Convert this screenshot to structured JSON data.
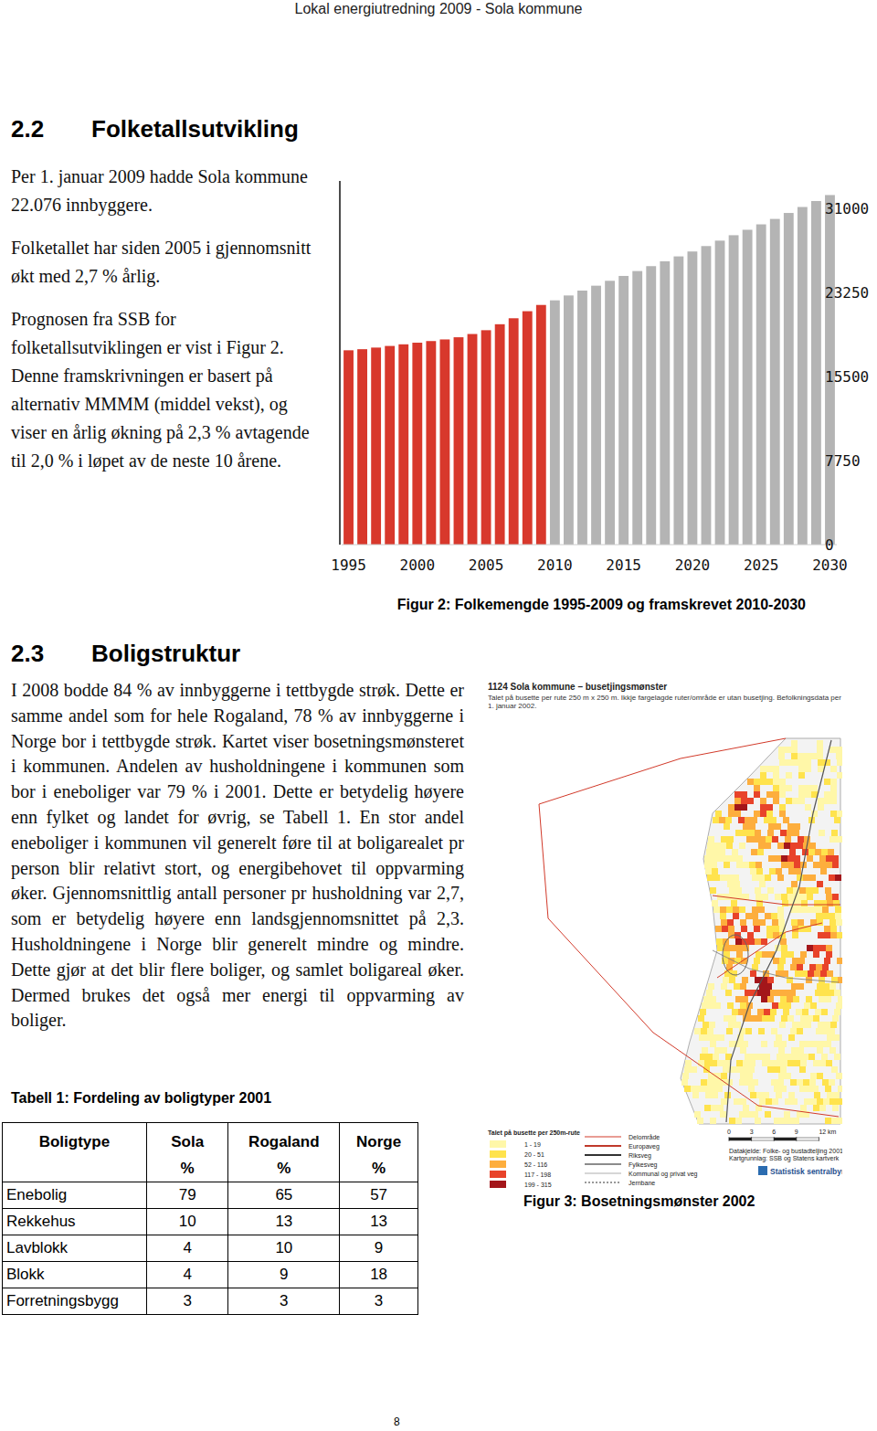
{
  "header": {
    "title": "Lokal energiutredning 2009 - Sola kommune"
  },
  "section_1": {
    "number": "2.2",
    "title": "Folketallsutvikling",
    "paragraphs": [
      "Per 1. januar 2009 hadde Sola kommune 22.076 innbyggere.",
      "Folketallet har siden 2005 i gjennomsnitt økt med 2,7 % årlig.",
      "Prognosen fra SSB for folketallsutviklingen er vist i Figur 2. Denne framskrivningen er basert på alternativ MMMM (middel vekst), og viser en årlig økning på 2,3 % avtagende til 2,0 % i løpet av de neste 10 årene."
    ]
  },
  "chart_data": {
    "type": "bar",
    "title": "Figur 2: Folkemengde 1995-2009 og framskrevet 2010-2030",
    "x": [
      1995,
      1996,
      1997,
      1998,
      1999,
      2000,
      2001,
      2002,
      2003,
      2004,
      2005,
      2006,
      2007,
      2008,
      2009,
      2010,
      2011,
      2012,
      2013,
      2014,
      2015,
      2016,
      2017,
      2018,
      2019,
      2020,
      2021,
      2022,
      2023,
      2024,
      2025,
      2026,
      2027,
      2028,
      2029,
      2030
    ],
    "values": [
      17900,
      18000,
      18150,
      18300,
      18450,
      18600,
      18750,
      18900,
      19100,
      19400,
      19750,
      20300,
      20850,
      21500,
      22076,
      22500,
      22950,
      23400,
      23850,
      24300,
      24750,
      25200,
      25650,
      26100,
      26550,
      27000,
      27500,
      28000,
      28500,
      29000,
      29500,
      30000,
      30550,
      31100,
      31650,
      32200
    ],
    "colors": [
      "#d8382c",
      "#d8382c",
      "#d8382c",
      "#d8382c",
      "#d8382c",
      "#d8382c",
      "#d8382c",
      "#d8382c",
      "#d8382c",
      "#d8382c",
      "#d8382c",
      "#d8382c",
      "#d8382c",
      "#d8382c",
      "#d8382c",
      "#b4b4b4",
      "#b4b4b4",
      "#b4b4b4",
      "#b4b4b4",
      "#b4b4b4",
      "#b4b4b4",
      "#b4b4b4",
      "#b4b4b4",
      "#b4b4b4",
      "#b4b4b4",
      "#b4b4b4",
      "#b4b4b4",
      "#b4b4b4",
      "#b4b4b4",
      "#b4b4b4",
      "#b4b4b4",
      "#b4b4b4",
      "#b4b4b4",
      "#b4b4b4",
      "#b4b4b4",
      "#b4b4b4"
    ],
    "xlim": [
      1994.5,
      2030.5
    ],
    "xticks": [
      1995,
      2000,
      2005,
      2010,
      2015,
      2020,
      2025,
      2030
    ],
    "ylim": [
      0,
      33500
    ],
    "yticks": [
      0,
      7750,
      15500,
      23250,
      31000
    ],
    "grid": false
  },
  "section_2": {
    "number": "2.3",
    "title": "Boligstruktur",
    "paragraphs": [
      "I 2008 bodde 84 % av innbyggerne i tettbygde strøk. Dette er samme andel som for hele Rogaland, 78 % av innbyggerne i Norge bor i tettbygde strøk. Kartet viser bosetningsmønsteret i kommunen. Andelen av husholdningene i kommunen som bor i eneboliger var 79 % i 2001. Dette er betydelig høyere enn fylket og landet for øvrig, se Tabell 1. En stor andel eneboliger i kommunen vil generelt føre til at boligarealet pr person blir relativt stort, og energibehovet til oppvarming øker. Gjennomsnittlig antall personer pr husholdning var 2,7, som er betydelig høyere enn landsgjennomsnittet på 2,3. Husholdningene i Norge blir generelt mindre og mindre. Dette gjør at det blir flere boliger, og samlet boligareal øker. Dermed brukes det også mer energi til oppvarming av boliger."
    ]
  },
  "table": {
    "caption": "Tabell 1: Fordeling av boligtyper 2001",
    "columns": [
      {
        "name": "Boligtype"
      },
      {
        "name": "Sola",
        "unit": "%"
      },
      {
        "name": "Rogaland",
        "unit": "%"
      },
      {
        "name": "Norge",
        "unit": "%"
      }
    ],
    "rows": [
      [
        "Enebolig",
        79,
        65,
        57
      ],
      [
        "Rekkehus",
        10,
        13,
        13
      ],
      [
        "Lavblokk",
        4,
        10,
        9
      ],
      [
        "Blokk",
        4,
        9,
        18
      ],
      [
        "Forretningsbygg",
        3,
        3,
        3
      ]
    ]
  },
  "map": {
    "caption": "Figur 3: Bosetningsmønster 2002",
    "title": "1124 Sola kommune – busetjingsmønster",
    "subtitle": "Talet på busette per rute 250 m x 250 m. Ikkje fargelagde ruter/område er utan busetjing. Befolkningsdata per 1. januar 2002.",
    "legend_title": "Talet på busette per 250m-rute",
    "classes": [
      "1 - 19",
      "20 - 51",
      "52 - 116",
      "117 - 198",
      "199 - 315"
    ],
    "line_types": [
      "Delområde",
      "Europaveg",
      "Riksveg",
      "Fylkesveg",
      "Kommunal og privat veg",
      "Jernbane"
    ],
    "scale": {
      "ticks": [
        0,
        3,
        6,
        9,
        {
          "value": 12,
          "label": "12 km"
        }
      ]
    },
    "source": [
      "Datakjelde: Folke- og bustadteljing 2001",
      "Kartgrunnlag: SSB og Statens kartverk"
    ],
    "publisher": "Statistisk sentralbyrå"
  },
  "footer": {
    "page": 8
  }
}
